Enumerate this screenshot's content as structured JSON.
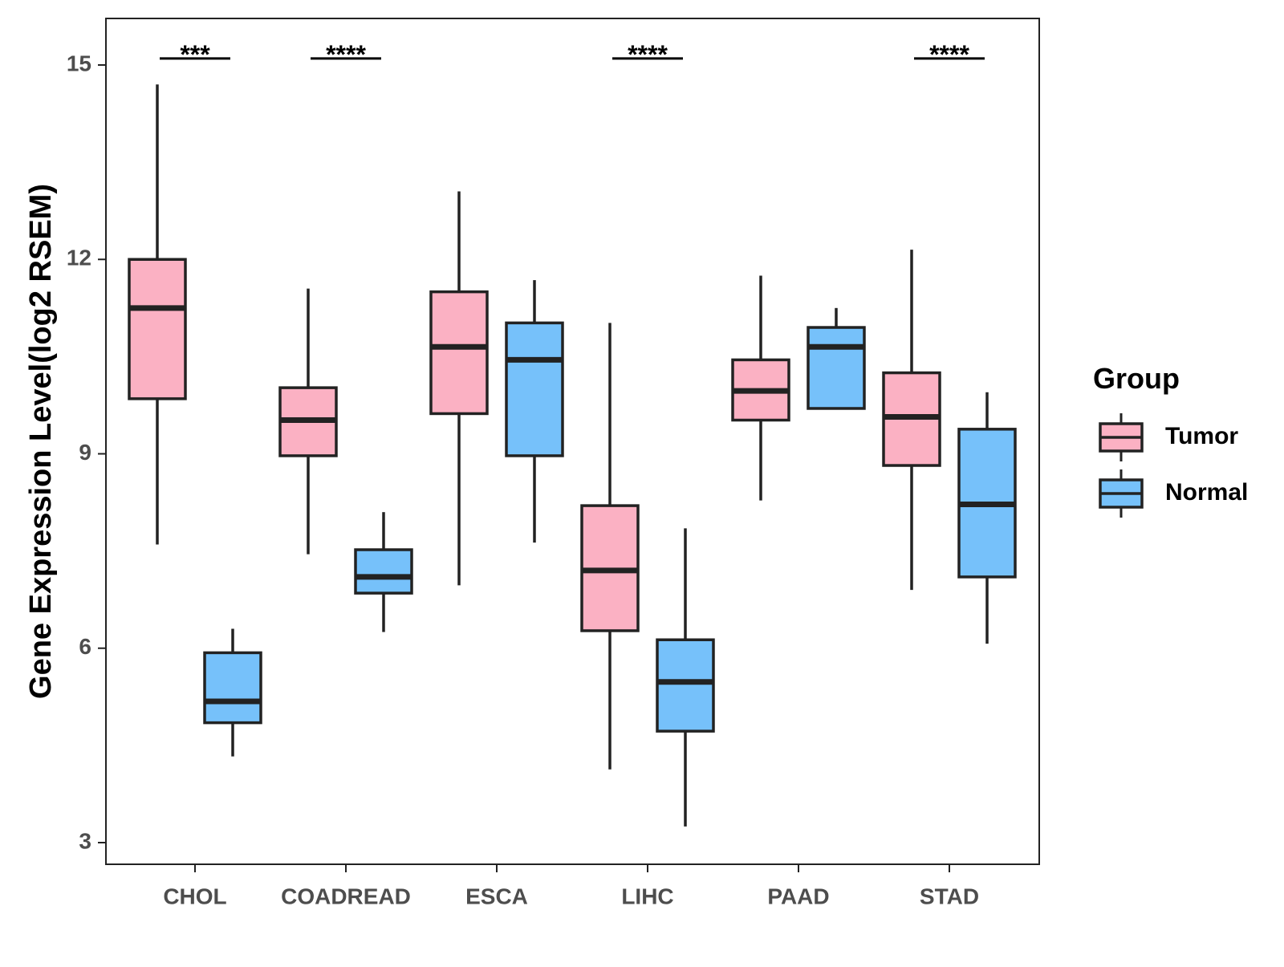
{
  "chart_data": {
    "type": "boxplot",
    "title": "",
    "xlabel": "",
    "ylabel": "Gene Expression Level(log2 RSEM)",
    "ylim": [
      2.7,
      16.2
    ],
    "yticks": [
      3,
      6,
      9,
      12,
      15
    ],
    "grid": false,
    "legend_position": "right",
    "legend_title": "Group",
    "categories": [
      "CHOL",
      "COADREAD",
      "ESCA",
      "LIHC",
      "PAAD",
      "STAD"
    ],
    "series": [
      {
        "name": "Tumor",
        "color": "#fbb1c3",
        "boxes": [
          {
            "whisker_low": 7.6,
            "q1": 9.85,
            "median": 11.25,
            "q3": 12.0,
            "whisker_high": 14.7
          },
          {
            "whisker_low": 7.45,
            "q1": 8.97,
            "median": 9.52,
            "q3": 10.02,
            "whisker_high": 11.55
          },
          {
            "whisker_low": 6.97,
            "q1": 9.62,
            "median": 10.65,
            "q3": 11.5,
            "whisker_high": 13.05
          },
          {
            "whisker_low": 4.13,
            "q1": 6.27,
            "median": 7.2,
            "q3": 8.2,
            "whisker_high": 11.02
          },
          {
            "whisker_low": 8.28,
            "q1": 9.52,
            "median": 9.97,
            "q3": 10.45,
            "whisker_high": 11.75
          },
          {
            "whisker_low": 6.9,
            "q1": 8.82,
            "median": 9.57,
            "q3": 10.25,
            "whisker_high": 12.15
          }
        ]
      },
      {
        "name": "Normal",
        "color": "#76c1fa",
        "boxes": [
          {
            "whisker_low": 4.33,
            "q1": 4.85,
            "median": 5.18,
            "q3": 5.93,
            "whisker_high": 6.3
          },
          {
            "whisker_low": 6.25,
            "q1": 6.85,
            "median": 7.1,
            "q3": 7.52,
            "whisker_high": 8.1
          },
          {
            "whisker_low": 7.63,
            "q1": 8.97,
            "median": 10.45,
            "q3": 11.02,
            "whisker_high": 11.68
          },
          {
            "whisker_low": 3.25,
            "q1": 4.72,
            "median": 5.48,
            "q3": 6.13,
            "whisker_high": 7.85
          },
          {
            "whisker_low": 9.7,
            "q1": 9.7,
            "median": 10.65,
            "q3": 10.95,
            "whisker_high": 11.25
          },
          {
            "whisker_low": 6.07,
            "q1": 7.1,
            "median": 8.22,
            "q3": 9.38,
            "whisker_high": 9.95
          }
        ]
      }
    ],
    "significance": [
      {
        "category": "CHOL",
        "label": "***"
      },
      {
        "category": "COADREAD",
        "label": "****"
      },
      {
        "category": "LIHC",
        "label": "****"
      },
      {
        "category": "STAD",
        "label": "****"
      }
    ],
    "significance_level": 15.1
  }
}
